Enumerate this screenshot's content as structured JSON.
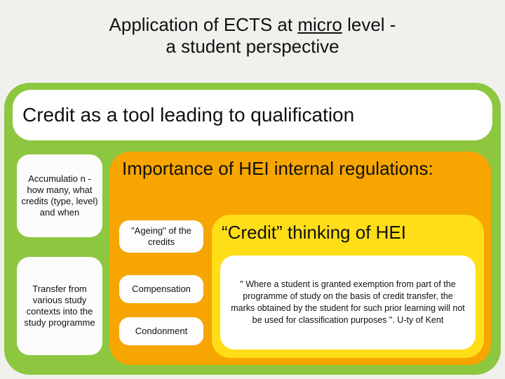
{
  "colors": {
    "page_bg": "#f0f0ed",
    "green": "#8dc63f",
    "orange": "#f7a500",
    "yellow": "#ffde17",
    "white": "#ffffff",
    "text": "#111111"
  },
  "title": {
    "pre": "Application of ECTS at ",
    "underlined": "micro",
    "post": " level  -",
    "line2": "a student perspective"
  },
  "credit_bar": "Credit as a tool leading to qualification",
  "left_boxes": {
    "accumulation": "Accumulatio n  - how many, what credits (type, level) and when",
    "transfer": "Transfer from various study contexts into the study programme"
  },
  "orange": {
    "title": "Importance of HEI  internal regulations:",
    "ageing": "\"Ageing\" of the credits",
    "compensation": "Compensation",
    "condonment": "Condonment"
  },
  "yellow": {
    "title": "“Credit” thinking of HEI",
    "quote": "\" Where a student is granted exemption from part of the programme of study on the basis of credit transfer, the marks obtained by the student for such prior learning will not be used for classification purposes \". U-ty of Kent"
  }
}
